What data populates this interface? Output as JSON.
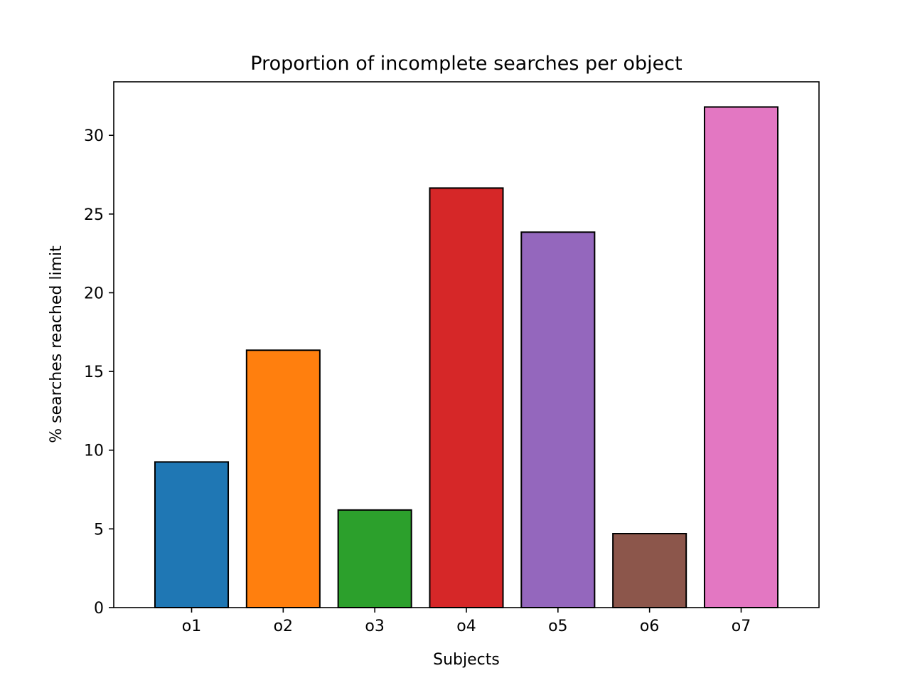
{
  "chart_data": {
    "type": "bar",
    "title": "Proportion of incomplete searches per object",
    "xlabel": "Subjects",
    "ylabel": "% searches reached limit",
    "categories": [
      "o1",
      "o2",
      "o3",
      "o4",
      "o5",
      "o6",
      "o7"
    ],
    "values": [
      9.25,
      16.35,
      6.2,
      26.65,
      23.85,
      4.7,
      31.8
    ],
    "colors": [
      "#1f77b4",
      "#ff7f0e",
      "#2ca02c",
      "#d62728",
      "#9467bd",
      "#8c564b",
      "#e377c2"
    ],
    "edge_color": "#000000",
    "ylim": [
      0,
      33.4
    ],
    "yticks": [
      0,
      5,
      10,
      15,
      20,
      25,
      30
    ],
    "grid": false,
    "legend": "none"
  }
}
